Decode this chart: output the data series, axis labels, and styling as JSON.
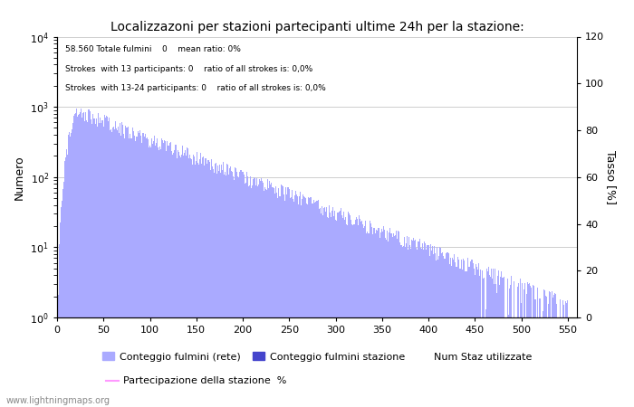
{
  "title": "Localizzazoni per stazioni partecipanti ultime 24h per la stazione:",
  "ylabel_left": "Numero",
  "ylabel_right": "Tasso [%]",
  "info_line1": "58.560 Totale fulmini    0    mean ratio: 0%",
  "info_line2": "Strokes  with 13 participants: 0    ratio of all strokes is: 0,0%",
  "info_line3": "Strokes  with 13-24 participants: 0    ratio of all strokes is: 0,0%",
  "watermark": "www.lightningmaps.org",
  "legend_label_network": "Conteggio fulmini (rete)",
  "legend_label_station": "Conteggio fulmini stazione",
  "legend_label_num": "Num Staz utilizzate",
  "legend_label_part": "Partecipazione della stazione  %",
  "bar_color_network": "#aaaaff",
  "bar_color_station": "#4444cc",
  "line_color": "#ff99ff",
  "background_color": "#ffffff",
  "grid_color": "#bbbbbb",
  "xticks": [
    0,
    50,
    100,
    150,
    200,
    250,
    300,
    350,
    400,
    450,
    500,
    550
  ],
  "yticks_right": [
    0,
    20,
    40,
    60,
    80,
    100,
    120
  ],
  "num_stations": 550,
  "peak_x": 20,
  "peak_val": 900,
  "decay_rate": 0.012
}
